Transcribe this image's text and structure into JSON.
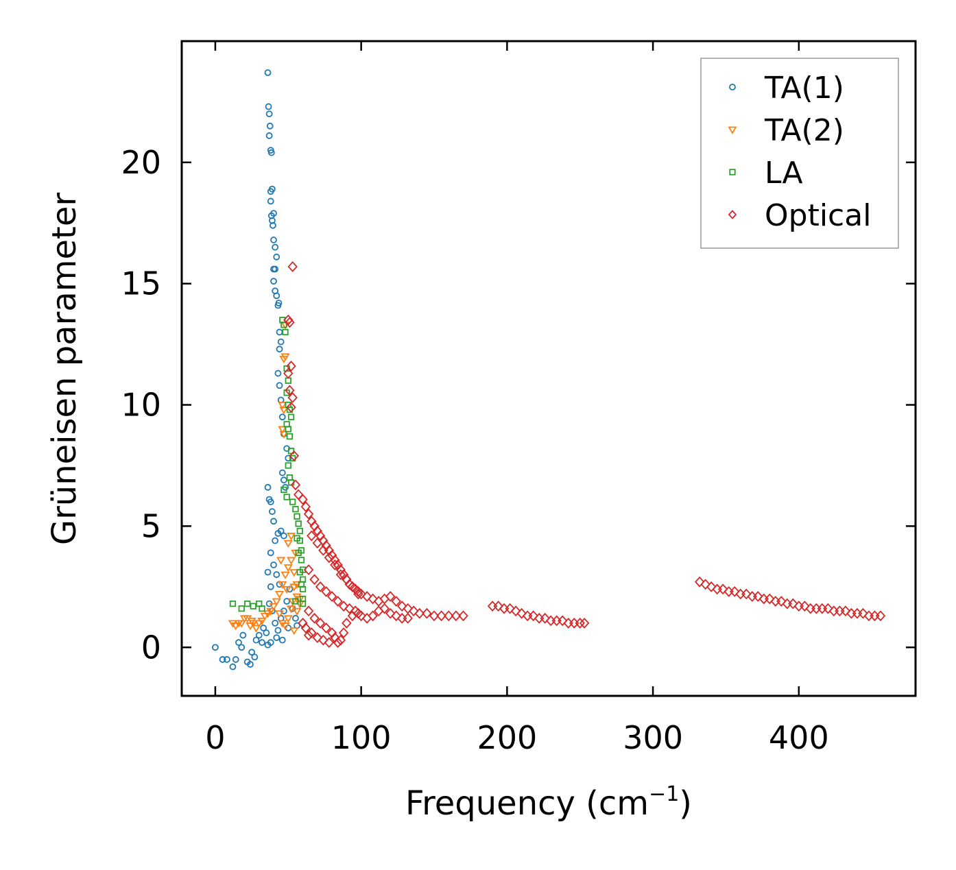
{
  "chart_data": {
    "type": "scatter",
    "title": "",
    "xlabel": "Frequency (cm",
    "xlabel_sup": "−1",
    "xlabel_close": ")",
    "ylabel": "Grüneisen parameter",
    "xlim": [
      -23,
      480
    ],
    "ylim": [
      -2,
      25
    ],
    "xticks": [
      0,
      100,
      200,
      300,
      400
    ],
    "yticks": [
      0,
      5,
      10,
      15,
      20
    ],
    "legend_position": "top-right",
    "grid": false,
    "series": [
      {
        "name": "TA(1)",
        "marker": "circle",
        "color": "#1f77b4",
        "points": [
          [
            0,
            0
          ],
          [
            5,
            -0.5
          ],
          [
            8,
            -0.5
          ],
          [
            12,
            -0.8
          ],
          [
            14,
            -0.5
          ],
          [
            16,
            0.2
          ],
          [
            18,
            0
          ],
          [
            19,
            0.5
          ],
          [
            22,
            -0.6
          ],
          [
            24,
            -0.7
          ],
          [
            25,
            -0.2
          ],
          [
            27,
            -0.4
          ],
          [
            28,
            0.3
          ],
          [
            30,
            0.5
          ],
          [
            32,
            0.2
          ],
          [
            33,
            0.8
          ],
          [
            35,
            0.6
          ],
          [
            36,
            0.1
          ],
          [
            36,
            23.7
          ],
          [
            36.5,
            22.3
          ],
          [
            37,
            22
          ],
          [
            37.5,
            21.5
          ],
          [
            37,
            21.1
          ],
          [
            38,
            20.5
          ],
          [
            38.5,
            20.4
          ],
          [
            38,
            18.8
          ],
          [
            39,
            18.9
          ],
          [
            38,
            18.4
          ],
          [
            38.5,
            17.8
          ],
          [
            39,
            17.6
          ],
          [
            39.5,
            17.4
          ],
          [
            40,
            17.9
          ],
          [
            40,
            16.8
          ],
          [
            41,
            16.5
          ],
          [
            42,
            16.1
          ],
          [
            41,
            15.6
          ],
          [
            40,
            15.6
          ],
          [
            40,
            15.1
          ],
          [
            41,
            14.7
          ],
          [
            42,
            14.5
          ],
          [
            43,
            14.1
          ],
          [
            43.5,
            14.2
          ],
          [
            44,
            13
          ],
          [
            45,
            12.6
          ],
          [
            44,
            12.3
          ],
          [
            43,
            11.3
          ],
          [
            44,
            10.8
          ],
          [
            45,
            10.2
          ],
          [
            46,
            9.5
          ],
          [
            47,
            8.8
          ],
          [
            49,
            8.2
          ],
          [
            50,
            7.8
          ],
          [
            46,
            7.2
          ],
          [
            47,
            6.9
          ],
          [
            48,
            6.6
          ],
          [
            36,
            6.6
          ],
          [
            37,
            6.1
          ],
          [
            38,
            6
          ],
          [
            39,
            5.6
          ],
          [
            40,
            5.2
          ],
          [
            41,
            4.4
          ],
          [
            43,
            4.7
          ],
          [
            45,
            4.8
          ],
          [
            47,
            4.6
          ],
          [
            38,
            3.9
          ],
          [
            40,
            3.4
          ],
          [
            42,
            3
          ],
          [
            44,
            2.6
          ],
          [
            36,
            3.1
          ],
          [
            38,
            2.5
          ],
          [
            37,
            1.8
          ],
          [
            39,
            1.5
          ],
          [
            41,
            1
          ],
          [
            43,
            0.7
          ],
          [
            45,
            1.2
          ],
          [
            47,
            1.5
          ],
          [
            49,
            1.9
          ],
          [
            51,
            2.4
          ],
          [
            53,
            1.6
          ],
          [
            55,
            1.2
          ],
          [
            56,
            0.9
          ],
          [
            38,
            0.2
          ],
          [
            42,
            0.4
          ],
          [
            46,
            0.3
          ],
          [
            50,
            0.8
          ]
        ]
      },
      {
        "name": "TA(2)",
        "marker": "triangle-down",
        "color": "#ff7f0e",
        "points": [
          [
            12,
            1
          ],
          [
            14,
            0.9
          ],
          [
            16,
            1
          ],
          [
            18,
            1
          ],
          [
            20,
            1.2
          ],
          [
            22,
            1.2
          ],
          [
            24,
            0.9
          ],
          [
            25,
            1.1
          ],
          [
            26,
            1
          ],
          [
            28,
            0.8
          ],
          [
            30,
            1
          ],
          [
            32,
            1.1
          ],
          [
            34,
            1.3
          ],
          [
            36,
            1.4
          ],
          [
            38,
            1.5
          ],
          [
            40,
            1.7
          ],
          [
            42,
            1.9
          ],
          [
            44,
            2.2
          ],
          [
            46,
            2.6
          ],
          [
            48,
            3
          ],
          [
            50,
            3.3
          ],
          [
            52,
            3.6
          ],
          [
            54,
            3.1
          ],
          [
            56,
            2.6
          ],
          [
            58,
            2
          ],
          [
            47,
            11.9
          ],
          [
            48,
            12
          ],
          [
            46,
            10
          ],
          [
            47,
            9.8
          ],
          [
            46,
            9
          ],
          [
            47,
            8.8
          ],
          [
            48,
            13.3
          ],
          [
            50,
            4.3
          ],
          [
            52,
            4.6
          ],
          [
            54,
            2.5
          ],
          [
            56,
            1.5
          ],
          [
            44,
            1.4
          ],
          [
            46,
            1
          ],
          [
            48,
            0.9
          ],
          [
            50,
            1.2
          ],
          [
            52,
            1.6
          ],
          [
            54,
            0.7
          ],
          [
            56,
            2.1
          ],
          [
            58,
            1.8
          ],
          [
            45,
            3.6
          ],
          [
            49,
            2.4
          ],
          [
            53,
            1.9
          ],
          [
            55,
            3.9
          ]
        ]
      },
      {
        "name": "LA",
        "marker": "square",
        "color": "#2ca02c",
        "points": [
          [
            12,
            1.8
          ],
          [
            18,
            1.6
          ],
          [
            22,
            1.8
          ],
          [
            26,
            1.7
          ],
          [
            30,
            1.8
          ],
          [
            32,
            1.6
          ],
          [
            46,
            13.5
          ],
          [
            47,
            13.3
          ],
          [
            48,
            13
          ],
          [
            49,
            11.5
          ],
          [
            50,
            11
          ],
          [
            49,
            10.5
          ],
          [
            50,
            10
          ],
          [
            51,
            9.8
          ],
          [
            52,
            9.5
          ],
          [
            49,
            9.2
          ],
          [
            50,
            9
          ],
          [
            51,
            8.7
          ],
          [
            52,
            8.1
          ],
          [
            53,
            7.8
          ],
          [
            50,
            7.5
          ],
          [
            51,
            7
          ],
          [
            52,
            6.8
          ],
          [
            47,
            6.5
          ],
          [
            49,
            6.2
          ],
          [
            53,
            6
          ],
          [
            55,
            5.7
          ],
          [
            56,
            5.4
          ],
          [
            57,
            5.1
          ],
          [
            58,
            4.8
          ],
          [
            58,
            4.4
          ],
          [
            59,
            4
          ],
          [
            59,
            3.6
          ],
          [
            60,
            3.2
          ],
          [
            60,
            2.8
          ],
          [
            60,
            2.4
          ],
          [
            60,
            2
          ],
          [
            60,
            1.8
          ],
          [
            56,
            4.5
          ],
          [
            57,
            3.9
          ],
          [
            58,
            3.1
          ],
          [
            59,
            2.6
          ],
          [
            55,
            1.9
          ]
        ]
      },
      {
        "name": "Optical",
        "marker": "diamond",
        "color": "#d62728",
        "points": [
          [
            53,
            15.7
          ],
          [
            50,
            13.5
          ],
          [
            51,
            13.4
          ],
          [
            52,
            11.6
          ],
          [
            50,
            11.3
          ],
          [
            51,
            10.6
          ],
          [
            53,
            10.3
          ],
          [
            52,
            9.9
          ],
          [
            54,
            7.9
          ],
          [
            55,
            6.7
          ],
          [
            57,
            6.3
          ],
          [
            60,
            6.1
          ],
          [
            62,
            5.8
          ],
          [
            64,
            5.5
          ],
          [
            66,
            5.2
          ],
          [
            68,
            5
          ],
          [
            70,
            4.8
          ],
          [
            72,
            4.6
          ],
          [
            74,
            4.4
          ],
          [
            76,
            4.2
          ],
          [
            78,
            4
          ],
          [
            80,
            3.8
          ],
          [
            82,
            3.6
          ],
          [
            84,
            3.4
          ],
          [
            86,
            3.2
          ],
          [
            88,
            3
          ],
          [
            90,
            2.8
          ],
          [
            92,
            2.6
          ],
          [
            94,
            2.5
          ],
          [
            96,
            2.4
          ],
          [
            98,
            2.3
          ],
          [
            100,
            2.2
          ],
          [
            104,
            2.1
          ],
          [
            108,
            2
          ],
          [
            112,
            1.9
          ],
          [
            116,
            2
          ],
          [
            120,
            2.1
          ],
          [
            124,
            1.9
          ],
          [
            128,
            1.7
          ],
          [
            132,
            1.6
          ],
          [
            136,
            1.5
          ],
          [
            140,
            1.4
          ],
          [
            145,
            1.4
          ],
          [
            150,
            1.3
          ],
          [
            155,
            1.3
          ],
          [
            160,
            1.3
          ],
          [
            165,
            1.3
          ],
          [
            170,
            1.3
          ],
          [
            66,
            4.6
          ],
          [
            70,
            4.3
          ],
          [
            74,
            4
          ],
          [
            78,
            3.7
          ],
          [
            82,
            3.4
          ],
          [
            86,
            3
          ],
          [
            90,
            2.8
          ],
          [
            94,
            2.5
          ],
          [
            98,
            2.2
          ],
          [
            64,
            3.2
          ],
          [
            68,
            2.8
          ],
          [
            72,
            2.5
          ],
          [
            76,
            2.3
          ],
          [
            80,
            2.1
          ],
          [
            84,
            1.9
          ],
          [
            88,
            1.7
          ],
          [
            92,
            1.6
          ],
          [
            96,
            1.5
          ],
          [
            64,
            1.5
          ],
          [
            68,
            1.2
          ],
          [
            72,
            1
          ],
          [
            76,
            0.8
          ],
          [
            80,
            0.6
          ],
          [
            82,
            0.4
          ],
          [
            84,
            0.2
          ],
          [
            86,
            0.3
          ],
          [
            88,
            0.6
          ],
          [
            90,
            1
          ],
          [
            94,
            1.3
          ],
          [
            98,
            1.4
          ],
          [
            60,
            1
          ],
          [
            62,
            0.8
          ],
          [
            64,
            0.5
          ],
          [
            66,
            0.6
          ],
          [
            70,
            0.4
          ],
          [
            74,
            0.3
          ],
          [
            78,
            0.2
          ],
          [
            100,
            1.3
          ],
          [
            104,
            1.2
          ],
          [
            108,
            1.3
          ],
          [
            112,
            1.5
          ],
          [
            116,
            1.6
          ],
          [
            120,
            1.4
          ],
          [
            124,
            1.3
          ],
          [
            128,
            1.2
          ],
          [
            132,
            1.2
          ],
          [
            190,
            1.7
          ],
          [
            194,
            1.7
          ],
          [
            198,
            1.6
          ],
          [
            202,
            1.6
          ],
          [
            206,
            1.5
          ],
          [
            210,
            1.4
          ],
          [
            214,
            1.3
          ],
          [
            218,
            1.3
          ],
          [
            222,
            1.2
          ],
          [
            226,
            1.2
          ],
          [
            230,
            1.1
          ],
          [
            234,
            1.1
          ],
          [
            238,
            1.1
          ],
          [
            242,
            1
          ],
          [
            246,
            1
          ],
          [
            250,
            1
          ],
          [
            253,
            1
          ],
          [
            332,
            2.7
          ],
          [
            336,
            2.6
          ],
          [
            340,
            2.5
          ],
          [
            344,
            2.4
          ],
          [
            348,
            2.4
          ],
          [
            352,
            2.3
          ],
          [
            356,
            2.3
          ],
          [
            360,
            2.2
          ],
          [
            364,
            2.2
          ],
          [
            368,
            2.1
          ],
          [
            372,
            2.1
          ],
          [
            376,
            2
          ],
          [
            380,
            2
          ],
          [
            384,
            1.9
          ],
          [
            388,
            1.9
          ],
          [
            392,
            1.8
          ],
          [
            396,
            1.8
          ],
          [
            400,
            1.7
          ],
          [
            404,
            1.7
          ],
          [
            408,
            1.6
          ],
          [
            412,
            1.6
          ],
          [
            416,
            1.6
          ],
          [
            420,
            1.6
          ],
          [
            424,
            1.5
          ],
          [
            428,
            1.5
          ],
          [
            432,
            1.5
          ],
          [
            436,
            1.4
          ],
          [
            440,
            1.4
          ],
          [
            444,
            1.4
          ],
          [
            448,
            1.3
          ],
          [
            452,
            1.3
          ],
          [
            456,
            1.3
          ]
        ]
      }
    ]
  }
}
